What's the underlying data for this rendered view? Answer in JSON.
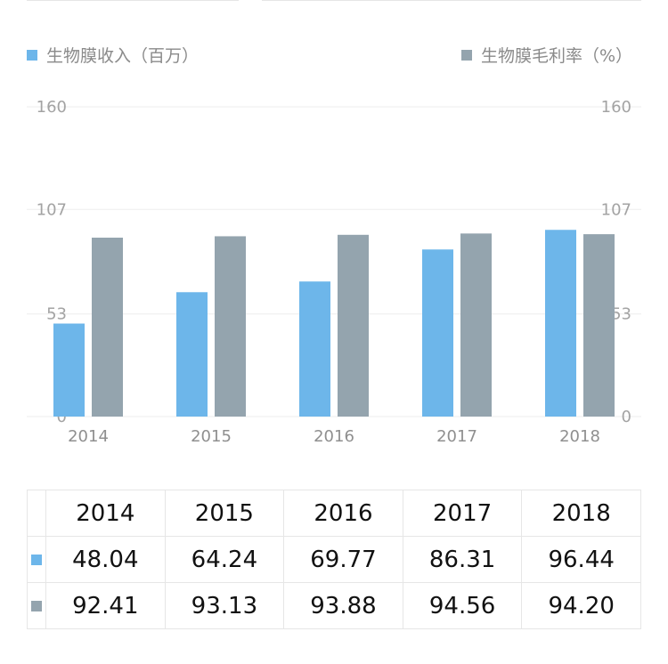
{
  "chart_data": {
    "type": "bar",
    "categories": [
      "2014",
      "2015",
      "2016",
      "2017",
      "2018"
    ],
    "series": [
      {
        "name": "生物膜收入（百万）",
        "values": [
          48.04,
          64.24,
          69.77,
          86.31,
          96.44
        ],
        "color": "#6db6ea",
        "axis": "left"
      },
      {
        "name": "生物膜毛利率（%）",
        "values": [
          92.41,
          93.13,
          93.88,
          94.56,
          94.2
        ],
        "color": "#94a4ae",
        "axis": "right"
      }
    ],
    "ylim": [
      0,
      160
    ],
    "y_ticks": [
      "0",
      "53",
      "107",
      "160"
    ],
    "grid": true,
    "legend": "top"
  },
  "table": {
    "header": [
      "2014",
      "2015",
      "2016",
      "2017",
      "2018"
    ],
    "rows": [
      {
        "color": "#6db6ea",
        "values": [
          "48.04",
          "64.24",
          "69.77",
          "86.31",
          "96.44"
        ]
      },
      {
        "color": "#94a4ae",
        "values": [
          "92.41",
          "93.13",
          "93.88",
          "94.56",
          "94.20"
        ]
      }
    ]
  }
}
